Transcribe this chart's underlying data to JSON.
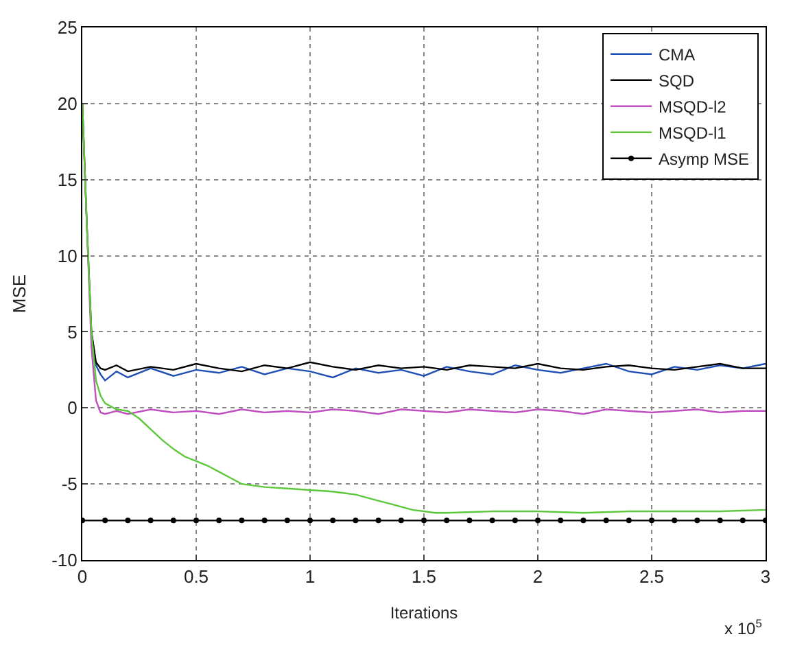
{
  "chart_data": {
    "type": "line",
    "xlabel": "Iterations",
    "ylabel": "MSE",
    "annotations": [
      "x 10$^{5}$"
    ],
    "xlim": [
      0,
      3
    ],
    "xticks": [
      0,
      0.5,
      1,
      1.5,
      2,
      2.5,
      3
    ],
    "ylim": [
      -10,
      25
    ],
    "yticks": [
      -10,
      -5,
      0,
      5,
      10,
      15,
      20,
      25
    ],
    "grid": true,
    "legend": "top right",
    "line_style": "solid",
    "series": [
      {
        "name": "CMA",
        "color": "#1f4fb4",
        "marker": "none",
        "x": [
          0.04,
          0.06,
          0.08,
          0.1,
          0.15,
          0.2,
          0.3,
          0.4,
          0.5,
          0.6,
          0.7,
          0.8,
          0.9,
          1.0,
          1.1,
          1.2,
          1.3,
          1.4,
          1.5,
          1.6,
          1.7,
          1.8,
          1.9,
          2.0,
          2.1,
          2.2,
          2.3,
          2.4,
          2.5,
          2.6,
          2.7,
          2.8,
          2.9,
          3.0
        ],
        "values": [
          5,
          2.8,
          2.2,
          1.8,
          2.4,
          2.0,
          2.6,
          2.1,
          2.5,
          2.3,
          2.7,
          2.2,
          2.6,
          2.4,
          2.0,
          2.6,
          2.3,
          2.5,
          2.1,
          2.7,
          2.4,
          2.2,
          2.8,
          2.5,
          2.3,
          2.6,
          2.9,
          2.4,
          2.2,
          2.7,
          2.5,
          2.8,
          2.6,
          2.9
        ]
      },
      {
        "name": "SQD",
        "color": "#000000",
        "marker": "none",
        "x": [
          0,
          0.02,
          0.04,
          0.06,
          0.08,
          0.1,
          0.15,
          0.2,
          0.3,
          0.4,
          0.5,
          0.6,
          0.7,
          0.8,
          0.9,
          1.0,
          1.1,
          1.2,
          1.3,
          1.4,
          1.5,
          1.6,
          1.7,
          1.8,
          1.9,
          2.0,
          2.1,
          2.2,
          2.3,
          2.4,
          2.5,
          2.6,
          2.7,
          2.8,
          2.9,
          3.0
        ],
        "values": [
          20,
          12,
          5,
          3.0,
          2.6,
          2.5,
          2.8,
          2.4,
          2.7,
          2.5,
          2.9,
          2.6,
          2.4,
          2.8,
          2.6,
          3.0,
          2.7,
          2.5,
          2.8,
          2.6,
          2.7,
          2.5,
          2.8,
          2.7,
          2.6,
          2.9,
          2.6,
          2.5,
          2.7,
          2.8,
          2.6,
          2.5,
          2.7,
          2.9,
          2.6,
          2.6
        ]
      },
      {
        "name": "MSQD-l2",
        "color": "#c050c0",
        "marker": "none",
        "x": [
          0,
          0.02,
          0.04,
          0.06,
          0.08,
          0.1,
          0.15,
          0.2,
          0.3,
          0.4,
          0.5,
          0.6,
          0.7,
          0.8,
          0.9,
          1.0,
          1.1,
          1.2,
          1.3,
          1.4,
          1.5,
          1.6,
          1.7,
          1.8,
          1.9,
          2.0,
          2.1,
          2.2,
          2.3,
          2.4,
          2.5,
          2.6,
          2.7,
          2.8,
          2.9,
          3.0
        ],
        "values": [
          20,
          12,
          4,
          0.5,
          -0.3,
          -0.4,
          -0.2,
          -0.4,
          -0.1,
          -0.3,
          -0.2,
          -0.4,
          -0.1,
          -0.3,
          -0.2,
          -0.3,
          -0.1,
          -0.2,
          -0.4,
          -0.1,
          -0.2,
          -0.3,
          -0.1,
          -0.2,
          -0.3,
          -0.1,
          -0.2,
          -0.4,
          -0.1,
          -0.2,
          -0.3,
          -0.2,
          -0.1,
          -0.3,
          -0.2,
          -0.2
        ]
      },
      {
        "name": "MSQD-l1",
        "color": "#5ec83c",
        "marker": "none",
        "x": [
          0,
          0.02,
          0.04,
          0.06,
          0.08,
          0.1,
          0.15,
          0.2,
          0.25,
          0.3,
          0.35,
          0.4,
          0.45,
          0.5,
          0.55,
          0.6,
          0.65,
          0.7,
          0.75,
          0.8,
          0.9,
          1.0,
          1.1,
          1.2,
          1.25,
          1.3,
          1.35,
          1.4,
          1.45,
          1.5,
          1.55,
          1.6,
          1.8,
          2.0,
          2.2,
          2.4,
          2.6,
          2.8,
          3.0
        ],
        "values": [
          20,
          12,
          5,
          1.8,
          0.8,
          0.3,
          -0.1,
          -0.2,
          -0.7,
          -1.4,
          -2.1,
          -2.7,
          -3.2,
          -3.5,
          -3.8,
          -4.2,
          -4.6,
          -5.0,
          -5.1,
          -5.2,
          -5.3,
          -5.4,
          -5.5,
          -5.7,
          -5.9,
          -6.1,
          -6.3,
          -6.5,
          -6.7,
          -6.8,
          -6.9,
          -6.9,
          -6.8,
          -6.8,
          -6.9,
          -6.8,
          -6.8,
          -6.8,
          -6.7
        ]
      },
      {
        "name": "Asymp MSE",
        "color": "#000000",
        "marker": "circle",
        "x": [
          0,
          0.1,
          0.2,
          0.3,
          0.4,
          0.5,
          0.6,
          0.7,
          0.8,
          0.9,
          1.0,
          1.1,
          1.2,
          1.3,
          1.4,
          1.5,
          1.6,
          1.7,
          1.8,
          1.9,
          2.0,
          2.1,
          2.2,
          2.3,
          2.4,
          2.5,
          2.6,
          2.7,
          2.8,
          2.9,
          3.0
        ],
        "values": [
          -7.4,
          -7.4,
          -7.4,
          -7.4,
          -7.4,
          -7.4,
          -7.4,
          -7.4,
          -7.4,
          -7.4,
          -7.4,
          -7.4,
          -7.4,
          -7.4,
          -7.4,
          -7.4,
          -7.4,
          -7.4,
          -7.4,
          -7.4,
          -7.4,
          -7.4,
          -7.4,
          -7.4,
          -7.4,
          -7.4,
          -7.4,
          -7.4,
          -7.4,
          -7.4,
          -7.4
        ]
      }
    ]
  }
}
